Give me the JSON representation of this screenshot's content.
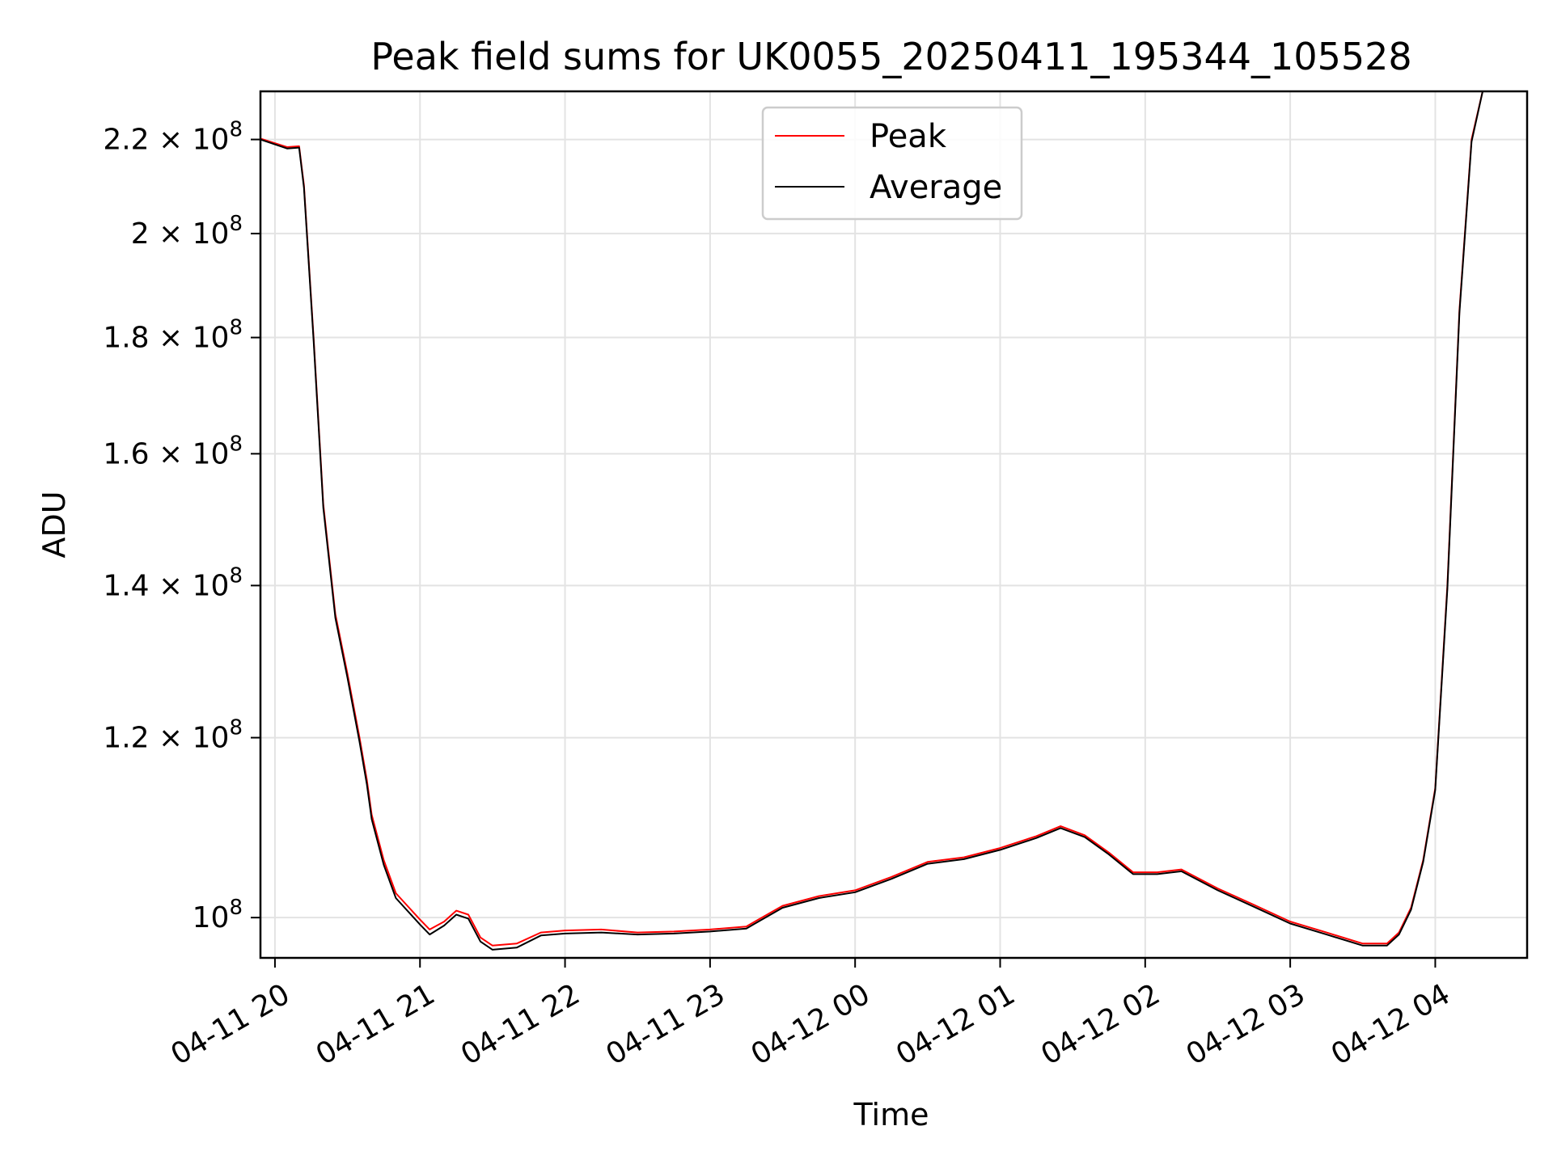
{
  "chart_data": {
    "type": "line",
    "title": "Peak field sums for UK0055_20250411_195344_105528",
    "xlabel": "Time",
    "ylabel": "ADU",
    "yscale": "log",
    "grid": true,
    "legend_position": "upper-center",
    "xlim": [
      "2025-04-11T19:54",
      "2025-04-12T04:38"
    ],
    "ylim": [
      96000000,
      231000000
    ],
    "x_ticks": [
      {
        "value": "2025-04-11T20:00",
        "label": "04-11 20"
      },
      {
        "value": "2025-04-11T21:00",
        "label": "04-11 21"
      },
      {
        "value": "2025-04-11T22:00",
        "label": "04-11 22"
      },
      {
        "value": "2025-04-11T23:00",
        "label": "04-11 23"
      },
      {
        "value": "2025-04-12T00:00",
        "label": "04-12 00"
      },
      {
        "value": "2025-04-12T01:00",
        "label": "04-12 01"
      },
      {
        "value": "2025-04-12T02:00",
        "label": "04-12 02"
      },
      {
        "value": "2025-04-12T03:00",
        "label": "04-12 03"
      },
      {
        "value": "2025-04-12T04:00",
        "label": "04-12 04"
      }
    ],
    "y_ticks": [
      {
        "value": 100000000,
        "mant": "10",
        "exp": "8"
      },
      {
        "value": 120000000,
        "mant": "1.2 × 10",
        "exp": "8"
      },
      {
        "value": 140000000,
        "mant": "1.4 × 10",
        "exp": "8"
      },
      {
        "value": 160000000,
        "mant": "1.6 × 10",
        "exp": "8"
      },
      {
        "value": 180000000,
        "mant": "1.8 × 10",
        "exp": "8"
      },
      {
        "value": 200000000,
        "mant": "2 × 10",
        "exp": "8"
      },
      {
        "value": 220000000,
        "mant": "2.2 × 10",
        "exp": "8"
      }
    ],
    "series": [
      {
        "name": "Peak",
        "color": "#ff0000",
        "points": [
          [
            "2025-04-11T19:54",
            220200000
          ],
          [
            "2025-04-11T20:05",
            218300000
          ],
          [
            "2025-04-11T20:10",
            218500000
          ],
          [
            "2025-04-11T20:12",
            210000000
          ],
          [
            "2025-04-11T20:16",
            180000000
          ],
          [
            "2025-04-11T20:20",
            152000000
          ],
          [
            "2025-04-11T20:25",
            136000000
          ],
          [
            "2025-04-11T20:30",
            128000000
          ],
          [
            "2025-04-11T20:35",
            120000000
          ],
          [
            "2025-04-11T20:38",
            115000000
          ],
          [
            "2025-04-11T20:40",
            111000000
          ],
          [
            "2025-04-11T20:45",
            106000000
          ],
          [
            "2025-04-11T20:50",
            102500000
          ],
          [
            "2025-04-11T21:00",
            99800000
          ],
          [
            "2025-04-11T21:04",
            98800000
          ],
          [
            "2025-04-11T21:10",
            99600000
          ],
          [
            "2025-04-11T21:15",
            100700000
          ],
          [
            "2025-04-11T21:20",
            100300000
          ],
          [
            "2025-04-11T21:25",
            98000000
          ],
          [
            "2025-04-11T21:30",
            97200000
          ],
          [
            "2025-04-11T21:40",
            97400000
          ],
          [
            "2025-04-11T21:50",
            98500000
          ],
          [
            "2025-04-11T22:00",
            98700000
          ],
          [
            "2025-04-11T22:15",
            98800000
          ],
          [
            "2025-04-11T22:30",
            98500000
          ],
          [
            "2025-04-11T22:45",
            98600000
          ],
          [
            "2025-04-11T23:00",
            98800000
          ],
          [
            "2025-04-11T23:15",
            99100000
          ],
          [
            "2025-04-11T23:20",
            99800000
          ],
          [
            "2025-04-11T23:30",
            101200000
          ],
          [
            "2025-04-11T23:45",
            102200000
          ],
          [
            "2025-04-12T00:00",
            102800000
          ],
          [
            "2025-04-12T00:15",
            104200000
          ],
          [
            "2025-04-12T00:30",
            105800000
          ],
          [
            "2025-04-12T00:45",
            106300000
          ],
          [
            "2025-04-12T01:00",
            107300000
          ],
          [
            "2025-04-12T01:15",
            108600000
          ],
          [
            "2025-04-12T01:25",
            109700000
          ],
          [
            "2025-04-12T01:35",
            108700000
          ],
          [
            "2025-04-12T01:45",
            106800000
          ],
          [
            "2025-04-12T01:55",
            104700000
          ],
          [
            "2025-04-12T02:05",
            104700000
          ],
          [
            "2025-04-12T02:15",
            105000000
          ],
          [
            "2025-04-12T02:30",
            103000000
          ],
          [
            "2025-04-12T02:45",
            101300000
          ],
          [
            "2025-04-12T03:00",
            99600000
          ],
          [
            "2025-04-12T03:15",
            98500000
          ],
          [
            "2025-04-12T03:30",
            97400000
          ],
          [
            "2025-04-12T03:40",
            97400000
          ],
          [
            "2025-04-12T03:45",
            98500000
          ],
          [
            "2025-04-12T03:50",
            101000000
          ],
          [
            "2025-04-12T03:55",
            106000000
          ],
          [
            "2025-04-12T04:00",
            114000000
          ],
          [
            "2025-04-12T04:05",
            140000000
          ],
          [
            "2025-04-12T04:10",
            185000000
          ],
          [
            "2025-04-12T04:15",
            220000000
          ],
          [
            "2025-04-12T04:20",
            232000000
          ]
        ]
      },
      {
        "name": "Average",
        "color": "#000000",
        "points": [
          [
            "2025-04-11T19:54",
            220000000
          ],
          [
            "2025-04-11T20:05",
            218000000
          ],
          [
            "2025-04-11T20:10",
            218200000
          ],
          [
            "2025-04-11T20:12",
            209500000
          ],
          [
            "2025-04-11T20:16",
            179500000
          ],
          [
            "2025-04-11T20:20",
            151500000
          ],
          [
            "2025-04-11T20:25",
            135500000
          ],
          [
            "2025-04-11T20:30",
            127500000
          ],
          [
            "2025-04-11T20:35",
            119500000
          ],
          [
            "2025-04-11T20:38",
            114500000
          ],
          [
            "2025-04-11T20:40",
            110500000
          ],
          [
            "2025-04-11T20:45",
            105500000
          ],
          [
            "2025-04-11T20:50",
            102000000
          ],
          [
            "2025-04-11T21:00",
            99300000
          ],
          [
            "2025-04-11T21:04",
            98300000
          ],
          [
            "2025-04-11T21:10",
            99200000
          ],
          [
            "2025-04-11T21:15",
            100300000
          ],
          [
            "2025-04-11T21:20",
            99900000
          ],
          [
            "2025-04-11T21:25",
            97600000
          ],
          [
            "2025-04-11T21:30",
            96800000
          ],
          [
            "2025-04-11T21:40",
            97000000
          ],
          [
            "2025-04-11T21:50",
            98200000
          ],
          [
            "2025-04-11T22:00",
            98400000
          ],
          [
            "2025-04-11T22:15",
            98500000
          ],
          [
            "2025-04-11T22:30",
            98300000
          ],
          [
            "2025-04-11T22:45",
            98400000
          ],
          [
            "2025-04-11T23:00",
            98600000
          ],
          [
            "2025-04-11T23:15",
            98900000
          ],
          [
            "2025-04-11T23:20",
            99600000
          ],
          [
            "2025-04-11T23:30",
            101000000
          ],
          [
            "2025-04-11T23:45",
            102000000
          ],
          [
            "2025-04-12T00:00",
            102600000
          ],
          [
            "2025-04-12T00:15",
            104000000
          ],
          [
            "2025-04-12T00:30",
            105600000
          ],
          [
            "2025-04-12T00:45",
            106100000
          ],
          [
            "2025-04-12T01:00",
            107100000
          ],
          [
            "2025-04-12T01:15",
            108400000
          ],
          [
            "2025-04-12T01:25",
            109500000
          ],
          [
            "2025-04-12T01:35",
            108500000
          ],
          [
            "2025-04-12T01:45",
            106600000
          ],
          [
            "2025-04-12T01:55",
            104500000
          ],
          [
            "2025-04-12T02:05",
            104500000
          ],
          [
            "2025-04-12T02:15",
            104800000
          ],
          [
            "2025-04-12T02:30",
            102800000
          ],
          [
            "2025-04-12T02:45",
            101100000
          ],
          [
            "2025-04-12T03:00",
            99400000
          ],
          [
            "2025-04-12T03:15",
            98300000
          ],
          [
            "2025-04-12T03:30",
            97200000
          ],
          [
            "2025-04-12T03:40",
            97200000
          ],
          [
            "2025-04-12T03:45",
            98300000
          ],
          [
            "2025-04-12T03:50",
            100800000
          ],
          [
            "2025-04-12T03:55",
            105800000
          ],
          [
            "2025-04-12T04:00",
            113800000
          ],
          [
            "2025-04-12T04:05",
            139500000
          ],
          [
            "2025-04-12T04:10",
            184500000
          ],
          [
            "2025-04-12T04:15",
            219500000
          ],
          [
            "2025-04-12T04:20",
            232000000
          ]
        ]
      }
    ]
  }
}
